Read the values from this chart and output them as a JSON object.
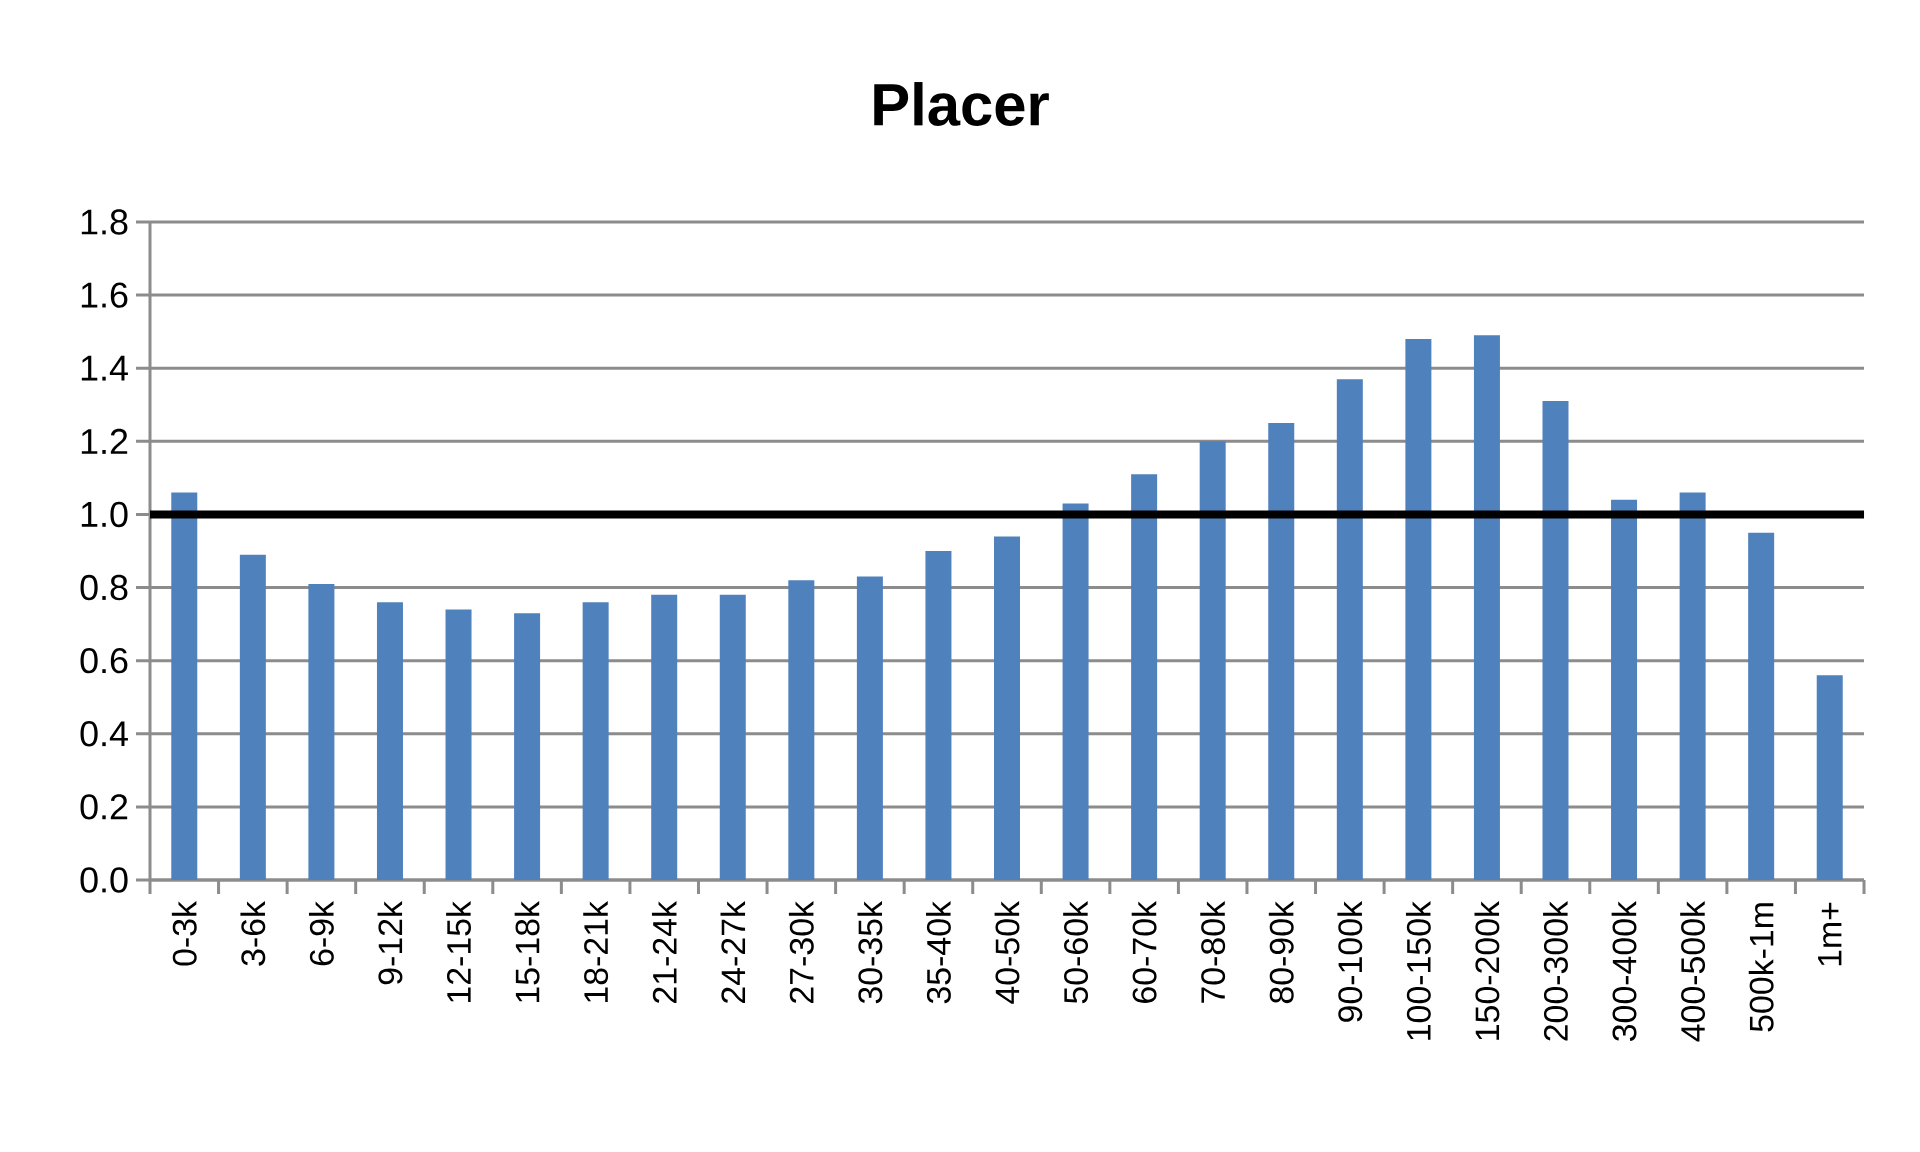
{
  "chart_data": {
    "type": "bar",
    "title": "Placer",
    "categories": [
      "0-3k",
      "3-6k",
      "6-9k",
      "9-12k",
      "12-15k",
      "15-18k",
      "18-21k",
      "21-24k",
      "24-27k",
      "27-30k",
      "30-35k",
      "35-40k",
      "40-50k",
      "50-60k",
      "60-70k",
      "70-80k",
      "80-90k",
      "90-100k",
      "100-150k",
      "150-200k",
      "200-300k",
      "300-400k",
      "400-500k",
      "500k-1m",
      "1m+"
    ],
    "values": [
      1.06,
      0.89,
      0.81,
      0.76,
      0.74,
      0.73,
      0.76,
      0.78,
      0.78,
      0.82,
      0.83,
      0.9,
      0.94,
      1.03,
      1.11,
      1.2,
      1.25,
      1.37,
      1.48,
      1.49,
      1.31,
      1.04,
      1.06,
      0.95,
      0.56
    ],
    "color": "#4f81bd",
    "ylim": [
      0,
      1.8
    ],
    "yticks": [
      {
        "value": 0,
        "label": "0.0"
      },
      {
        "value": 0.2,
        "label": "0.2"
      },
      {
        "value": 0.4,
        "label": "0.4"
      },
      {
        "value": 0.6,
        "label": "0.6"
      },
      {
        "value": 0.8,
        "label": "0.8"
      },
      {
        "value": 1.0,
        "label": "1.0"
      },
      {
        "value": 1.2,
        "label": "1.2"
      },
      {
        "value": 1.4,
        "label": "1.4"
      },
      {
        "value": 1.6,
        "label": "1.6"
      },
      {
        "value": 1.8,
        "label": "1.8"
      }
    ],
    "grid": "y",
    "ref_lines": [
      {
        "axis": "y",
        "value": 1.0,
        "color": "#000000"
      }
    ]
  }
}
